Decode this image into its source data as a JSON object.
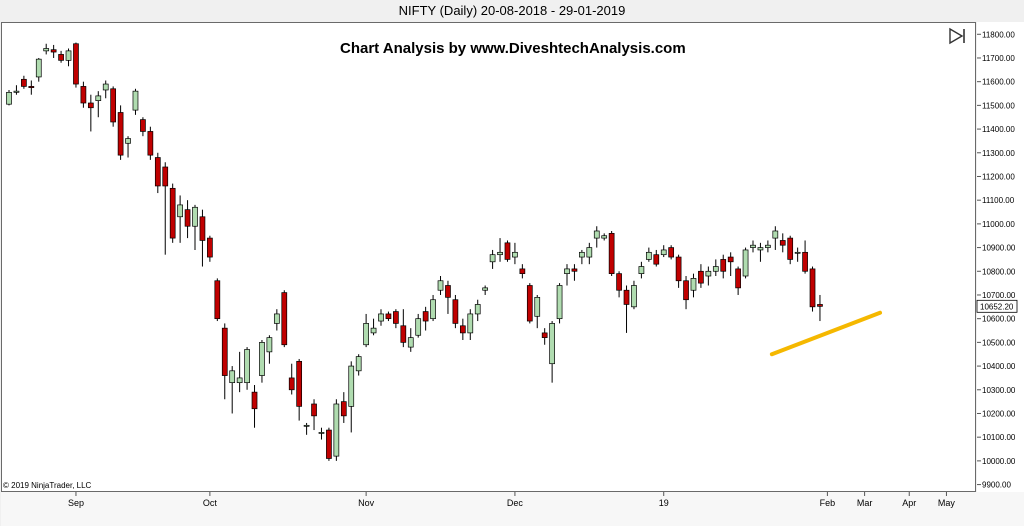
{
  "window_title": "NIFTY (Daily)  20-08-2018 - 29-01-2019",
  "heading": "Chart Analysis by www.DiveshtechAnalysis.com",
  "copyright": "© 2019 NinjaTrader, LLC",
  "nav_icon": "skip-to-end-icon",
  "colors": {
    "up": "#b0dcb0",
    "down": "#c00000",
    "wick": "#000000",
    "trendline": "#f5b800",
    "price_box": "#ffffff"
  },
  "chart_data": {
    "type": "candlestick",
    "title": "NIFTY (Daily)  20-08-2018 - 29-01-2019",
    "ylim": [
      9900,
      11850
    ],
    "y_ticks": [
      9900,
      10000,
      10100,
      10200,
      10300,
      10400,
      10500,
      10600,
      10700,
      10800,
      10900,
      11000,
      11100,
      11200,
      11300,
      11400,
      11500,
      11600,
      11700,
      11800
    ],
    "y_tick_labels": [
      "9900.00",
      "10000.00",
      "10100.00",
      "10200.00",
      "10300.00",
      "10400.00",
      "10500.00",
      "10600.00",
      "10700.00",
      "10800.00",
      "10900.00",
      "11000.00",
      "11100.00",
      "11200.00",
      "11300.00",
      "11400.00",
      "11500.00",
      "11600.00",
      "11700.00",
      "11800.00"
    ],
    "x_axis_labels": [
      {
        "label": "Sep",
        "index": 9
      },
      {
        "label": "Oct",
        "index": 27
      },
      {
        "label": "Nov",
        "index": 48
      },
      {
        "label": "Dec",
        "index": 68
      },
      {
        "label": "19",
        "index": 88
      },
      {
        "label": "Feb",
        "index": 110
      },
      {
        "label": "Mar",
        "index": 115
      },
      {
        "label": "Apr",
        "index": 121
      },
      {
        "label": "May",
        "index": 126
      }
    ],
    "last_price_label": "10652.20",
    "last_price": 10652.2,
    "grid": false,
    "trendline": {
      "from": {
        "index": 102,
        "value": 10450
      },
      "to": {
        "index": 116,
        "value": 10625
      }
    },
    "candles": [
      {
        "o": 11505,
        "h": 11565,
        "l": 11500,
        "c": 11555
      },
      {
        "o": 11555,
        "h": 11585,
        "l": 11545,
        "c": 11560
      },
      {
        "o": 11610,
        "h": 11625,
        "l": 11570,
        "c": 11580
      },
      {
        "o": 11580,
        "h": 11605,
        "l": 11545,
        "c": 11575
      },
      {
        "o": 11620,
        "h": 11700,
        "l": 11600,
        "c": 11695
      },
      {
        "o": 11730,
        "h": 11760,
        "l": 11715,
        "c": 11740
      },
      {
        "o": 11735,
        "h": 11755,
        "l": 11700,
        "c": 11725
      },
      {
        "o": 11715,
        "h": 11730,
        "l": 11680,
        "c": 11690
      },
      {
        "o": 11690,
        "h": 11740,
        "l": 11665,
        "c": 11730
      },
      {
        "o": 11760,
        "h": 11765,
        "l": 11575,
        "c": 11590
      },
      {
        "o": 11580,
        "h": 11600,
        "l": 11490,
        "c": 11510
      },
      {
        "o": 11510,
        "h": 11545,
        "l": 11390,
        "c": 11490
      },
      {
        "o": 11520,
        "h": 11560,
        "l": 11450,
        "c": 11540
      },
      {
        "o": 11565,
        "h": 11605,
        "l": 11530,
        "c": 11590
      },
      {
        "o": 11570,
        "h": 11580,
        "l": 11410,
        "c": 11430
      },
      {
        "o": 11470,
        "h": 11500,
        "l": 11270,
        "c": 11290
      },
      {
        "o": 11340,
        "h": 11370,
        "l": 11280,
        "c": 11360
      },
      {
        "o": 11480,
        "h": 11570,
        "l": 11460,
        "c": 11560
      },
      {
        "o": 11440,
        "h": 11450,
        "l": 11370,
        "c": 11390
      },
      {
        "o": 11390,
        "h": 11410,
        "l": 11270,
        "c": 11290
      },
      {
        "o": 11280,
        "h": 11300,
        "l": 11130,
        "c": 11160
      },
      {
        "o": 11240,
        "h": 11260,
        "l": 10870,
        "c": 11160
      },
      {
        "o": 11150,
        "h": 11170,
        "l": 10920,
        "c": 10940
      },
      {
        "o": 11030,
        "h": 11120,
        "l": 10920,
        "c": 11080
      },
      {
        "o": 11060,
        "h": 11100,
        "l": 10940,
        "c": 10990
      },
      {
        "o": 10990,
        "h": 11080,
        "l": 10890,
        "c": 11070
      },
      {
        "o": 11030,
        "h": 11060,
        "l": 10820,
        "c": 10930
      },
      {
        "o": 10940,
        "h": 10950,
        "l": 10840,
        "c": 10860
      },
      {
        "o": 10760,
        "h": 10770,
        "l": 10590,
        "c": 10600
      },
      {
        "o": 10560,
        "h": 10580,
        "l": 10260,
        "c": 10360
      },
      {
        "o": 10330,
        "h": 10400,
        "l": 10200,
        "c": 10380
      },
      {
        "o": 10330,
        "h": 10460,
        "l": 10290,
        "c": 10350
      },
      {
        "o": 10330,
        "h": 10480,
        "l": 10300,
        "c": 10470
      },
      {
        "o": 10290,
        "h": 10320,
        "l": 10140,
        "c": 10220
      },
      {
        "o": 10360,
        "h": 10510,
        "l": 10330,
        "c": 10500
      },
      {
        "o": 10460,
        "h": 10530,
        "l": 10410,
        "c": 10520
      },
      {
        "o": 10580,
        "h": 10640,
        "l": 10550,
        "c": 10620
      },
      {
        "o": 10710,
        "h": 10720,
        "l": 10480,
        "c": 10490
      },
      {
        "o": 10350,
        "h": 10410,
        "l": 10280,
        "c": 10300
      },
      {
        "o": 10420,
        "h": 10430,
        "l": 10170,
        "c": 10230
      },
      {
        "o": 10150,
        "h": 10160,
        "l": 10110,
        "c": 10150
      },
      {
        "o": 10240,
        "h": 10260,
        "l": 10130,
        "c": 10190
      },
      {
        "o": 10120,
        "h": 10140,
        "l": 10090,
        "c": 10120
      },
      {
        "o": 10130,
        "h": 10140,
        "l": 10000,
        "c": 10010
      },
      {
        "o": 10020,
        "h": 10260,
        "l": 10000,
        "c": 10240
      },
      {
        "o": 10250,
        "h": 10290,
        "l": 10160,
        "c": 10190
      },
      {
        "o": 10230,
        "h": 10420,
        "l": 10120,
        "c": 10400
      },
      {
        "o": 10380,
        "h": 10450,
        "l": 10360,
        "c": 10440
      },
      {
        "o": 10490,
        "h": 10620,
        "l": 10480,
        "c": 10580
      },
      {
        "o": 10540,
        "h": 10600,
        "l": 10530,
        "c": 10560
      },
      {
        "o": 10590,
        "h": 10640,
        "l": 10570,
        "c": 10620
      },
      {
        "o": 10620,
        "h": 10630,
        "l": 10590,
        "c": 10600
      },
      {
        "o": 10630,
        "h": 10640,
        "l": 10560,
        "c": 10580
      },
      {
        "o": 10570,
        "h": 10640,
        "l": 10480,
        "c": 10500
      },
      {
        "o": 10480,
        "h": 10560,
        "l": 10460,
        "c": 10520
      },
      {
        "o": 10530,
        "h": 10620,
        "l": 10520,
        "c": 10600
      },
      {
        "o": 10630,
        "h": 10650,
        "l": 10550,
        "c": 10590
      },
      {
        "o": 10600,
        "h": 10700,
        "l": 10590,
        "c": 10680
      },
      {
        "o": 10720,
        "h": 10780,
        "l": 10700,
        "c": 10760
      },
      {
        "o": 10740,
        "h": 10760,
        "l": 10620,
        "c": 10690
      },
      {
        "o": 10680,
        "h": 10700,
        "l": 10560,
        "c": 10580
      },
      {
        "o": 10570,
        "h": 10600,
        "l": 10510,
        "c": 10540
      },
      {
        "o": 10540,
        "h": 10640,
        "l": 10510,
        "c": 10620
      },
      {
        "o": 10620,
        "h": 10680,
        "l": 10590,
        "c": 10660
      },
      {
        "o": 10720,
        "h": 10740,
        "l": 10700,
        "c": 10730
      },
      {
        "o": 10840,
        "h": 10890,
        "l": 10810,
        "c": 10870
      },
      {
        "o": 10870,
        "h": 10940,
        "l": 10840,
        "c": 10880
      },
      {
        "o": 10920,
        "h": 10930,
        "l": 10840,
        "c": 10850
      },
      {
        "o": 10860,
        "h": 10920,
        "l": 10830,
        "c": 10880
      },
      {
        "o": 10810,
        "h": 10830,
        "l": 10770,
        "c": 10790
      },
      {
        "o": 10740,
        "h": 10750,
        "l": 10580,
        "c": 10590
      },
      {
        "o": 10610,
        "h": 10700,
        "l": 10560,
        "c": 10690
      },
      {
        "o": 10540,
        "h": 10560,
        "l": 10490,
        "c": 10520
      },
      {
        "o": 10410,
        "h": 10590,
        "l": 10330,
        "c": 10580
      },
      {
        "o": 10600,
        "h": 10750,
        "l": 10580,
        "c": 10740
      },
      {
        "o": 10790,
        "h": 10830,
        "l": 10740,
        "c": 10810
      },
      {
        "o": 10810,
        "h": 10830,
        "l": 10760,
        "c": 10800
      },
      {
        "o": 10860,
        "h": 10890,
        "l": 10830,
        "c": 10880
      },
      {
        "o": 10860,
        "h": 10920,
        "l": 10830,
        "c": 10900
      },
      {
        "o": 10940,
        "h": 10990,
        "l": 10900,
        "c": 10970
      },
      {
        "o": 10940,
        "h": 10960,
        "l": 10930,
        "c": 10950
      },
      {
        "o": 10960,
        "h": 10970,
        "l": 10780,
        "c": 10790
      },
      {
        "o": 10790,
        "h": 10800,
        "l": 10690,
        "c": 10720
      },
      {
        "o": 10720,
        "h": 10740,
        "l": 10540,
        "c": 10660
      },
      {
        "o": 10650,
        "h": 10760,
        "l": 10640,
        "c": 10740
      },
      {
        "o": 10790,
        "h": 10840,
        "l": 10770,
        "c": 10820
      },
      {
        "o": 10850,
        "h": 10900,
        "l": 10840,
        "c": 10880
      },
      {
        "o": 10870,
        "h": 10890,
        "l": 10820,
        "c": 10830
      },
      {
        "o": 10870,
        "h": 10910,
        "l": 10860,
        "c": 10890
      },
      {
        "o": 10900,
        "h": 10910,
        "l": 10850,
        "c": 10860
      },
      {
        "o": 10860,
        "h": 10870,
        "l": 10730,
        "c": 10760
      },
      {
        "o": 10760,
        "h": 10780,
        "l": 10640,
        "c": 10680
      },
      {
        "o": 10720,
        "h": 10790,
        "l": 10690,
        "c": 10770
      },
      {
        "o": 10800,
        "h": 10830,
        "l": 10730,
        "c": 10750
      },
      {
        "o": 10780,
        "h": 10820,
        "l": 10740,
        "c": 10800
      },
      {
        "o": 10800,
        "h": 10850,
        "l": 10780,
        "c": 10820
      },
      {
        "o": 10850,
        "h": 10870,
        "l": 10770,
        "c": 10800
      },
      {
        "o": 10860,
        "h": 10880,
        "l": 10780,
        "c": 10840
      },
      {
        "o": 10810,
        "h": 10820,
        "l": 10700,
        "c": 10730
      },
      {
        "o": 10780,
        "h": 10900,
        "l": 10770,
        "c": 10890
      },
      {
        "o": 10900,
        "h": 10930,
        "l": 10880,
        "c": 10910
      },
      {
        "o": 10890,
        "h": 10920,
        "l": 10840,
        "c": 10900
      },
      {
        "o": 10900,
        "h": 10930,
        "l": 10880,
        "c": 10910
      },
      {
        "o": 10940,
        "h": 10990,
        "l": 10890,
        "c": 10970
      },
      {
        "o": 10930,
        "h": 10960,
        "l": 10880,
        "c": 10910
      },
      {
        "o": 10940,
        "h": 10950,
        "l": 10830,
        "c": 10850
      },
      {
        "o": 10880,
        "h": 10900,
        "l": 10840,
        "c": 10880
      },
      {
        "o": 10880,
        "h": 10930,
        "l": 10790,
        "c": 10800
      },
      {
        "o": 10810,
        "h": 10820,
        "l": 10630,
        "c": 10650
      },
      {
        "o": 10660,
        "h": 10700,
        "l": 10590,
        "c": 10652
      }
    ]
  }
}
